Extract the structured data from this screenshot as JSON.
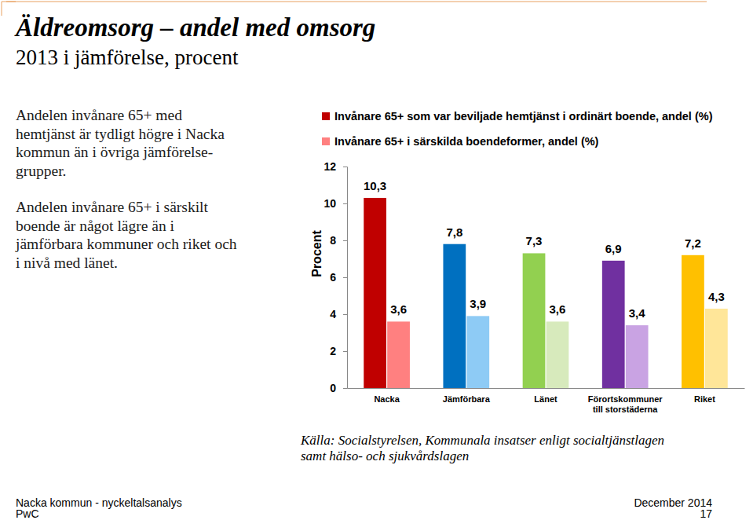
{
  "chart_data": {
    "type": "bar",
    "title": "Äldreomsorg – andel med omsorg",
    "subtitle": "2013 i jämförelse, procent",
    "y_label": "Procent",
    "categories": [
      "Nacka",
      "Jämförbara",
      "Länet",
      "Förortskommuner\ntill storstäderna",
      "Riket"
    ],
    "series": [
      {
        "name": "Invånare 65+ som var beviljade hemtjänst i ordinärt boende, andel (%)",
        "color": "#c00000",
        "colors": [
          "#c00000",
          "#0070c0",
          "#92d050",
          "#7030a0",
          "#ffc000"
        ],
        "values": [
          10.3,
          7.8,
          7.3,
          6.9,
          7.2
        ],
        "value_labels": [
          "10,3",
          "7,8",
          "7,3",
          "6,9",
          "7,2"
        ]
      },
      {
        "name": "Invånare 65+ i särskilda boendeformer, andel (%)",
        "color": "#ff8080",
        "colors": [
          "#ff8080",
          "#8ecbf5",
          "#d7eabc",
          "#c9a3e3",
          "#ffe699"
        ],
        "values": [
          3.6,
          3.9,
          3.6,
          3.4,
          4.3
        ],
        "value_labels": [
          "3,6",
          "3,9",
          "3,6",
          "3,4",
          "4,3"
        ]
      }
    ],
    "ylim": [
      0,
      12
    ],
    "yticks": [
      0,
      2,
      4,
      6,
      8,
      10,
      12
    ],
    "grid": false,
    "legend": "top-left",
    "data_labels": true
  },
  "slide": {
    "paragraphs": [
      "Andelen invånare 65+ med\nhemtjänst är tydligt högre i Nacka\nkommun än i övriga jämförelse-\ngrupper.",
      "Andelen invånare 65+ i särskilt\nboende är något lägre än i\njämförbara kommuner och riket och\ni nivå med länet."
    ],
    "source": "Källa: Socialstyrelsen, Kommunala insatser enligt socialtjänstlagen\nsamt hälso- och sjukvårdslagen",
    "footer_left": [
      "Nacka kommun - nyckeltalsanalys",
      "PwC"
    ],
    "footer_right": [
      "December 2014",
      "17"
    ]
  }
}
